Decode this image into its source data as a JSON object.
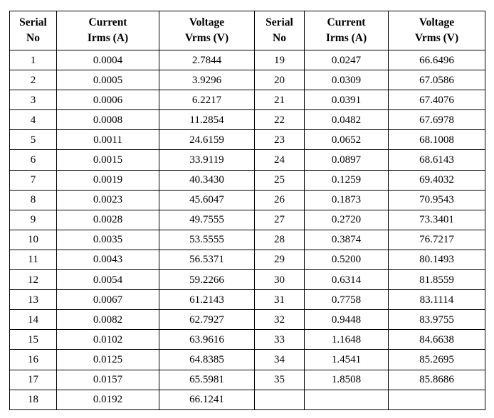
{
  "table": {
    "headers": [
      {
        "line1": "Serial",
        "line2": "No"
      },
      {
        "line1": "Current",
        "line2": "Irms (A)"
      },
      {
        "line1": "Voltage",
        "line2": "Vrms (V)"
      },
      {
        "line1": "Serial",
        "line2": "No"
      },
      {
        "line1": "Current",
        "line2": "Irms (A)"
      },
      {
        "line1": "Voltage",
        "line2": "Vrms (V)"
      }
    ],
    "rows": [
      [
        "1",
        "0.0004",
        "2.7844",
        "19",
        "0.0247",
        "66.6496"
      ],
      [
        "2",
        "0.0005",
        "3.9296",
        "20",
        "0.0309",
        "67.0586"
      ],
      [
        "3",
        "0.0006",
        "6.2217",
        "21",
        "0.0391",
        "67.4076"
      ],
      [
        "4",
        "0.0008",
        "11.2854",
        "22",
        "0.0482",
        "67.6978"
      ],
      [
        "5",
        "0.0011",
        "24.6159",
        "23",
        "0.0652",
        "68.1008"
      ],
      [
        "6",
        "0.0015",
        "33.9119",
        "24",
        "0.0897",
        "68.6143"
      ],
      [
        "7",
        "0.0019",
        "40.3430",
        "25",
        "0.1259",
        "69.4032"
      ],
      [
        "8",
        "0.0023",
        "45.6047",
        "26",
        "0.1873",
        "70.9543"
      ],
      [
        "9",
        "0.0028",
        "49.7555",
        "27",
        "0.2720",
        "73.3401"
      ],
      [
        "10",
        "0.0035",
        "53.5555",
        "28",
        "0.3874",
        "76.7217"
      ],
      [
        "11",
        "0.0043",
        "56.5371",
        "29",
        "0.5200",
        "80.1493"
      ],
      [
        "12",
        "0.0054",
        "59.2266",
        "30",
        "0.6314",
        "81.8559"
      ],
      [
        "13",
        "0.0067",
        "61.2143",
        "31",
        "0.7758",
        "83.1114"
      ],
      [
        "14",
        "0.0082",
        "62.7927",
        "32",
        "0.9448",
        "83.9755"
      ],
      [
        "15",
        "0.0102",
        "63.9616",
        "33",
        "1.1648",
        "84.6638"
      ],
      [
        "16",
        "0.0125",
        "64.8385",
        "34",
        "1.4541",
        "85.2695"
      ],
      [
        "17",
        "0.0157",
        "65.5981",
        "35",
        "1.8508",
        "85.8686"
      ],
      [
        "18",
        "0.0192",
        "66.1241",
        "",
        "",
        ""
      ]
    ]
  }
}
